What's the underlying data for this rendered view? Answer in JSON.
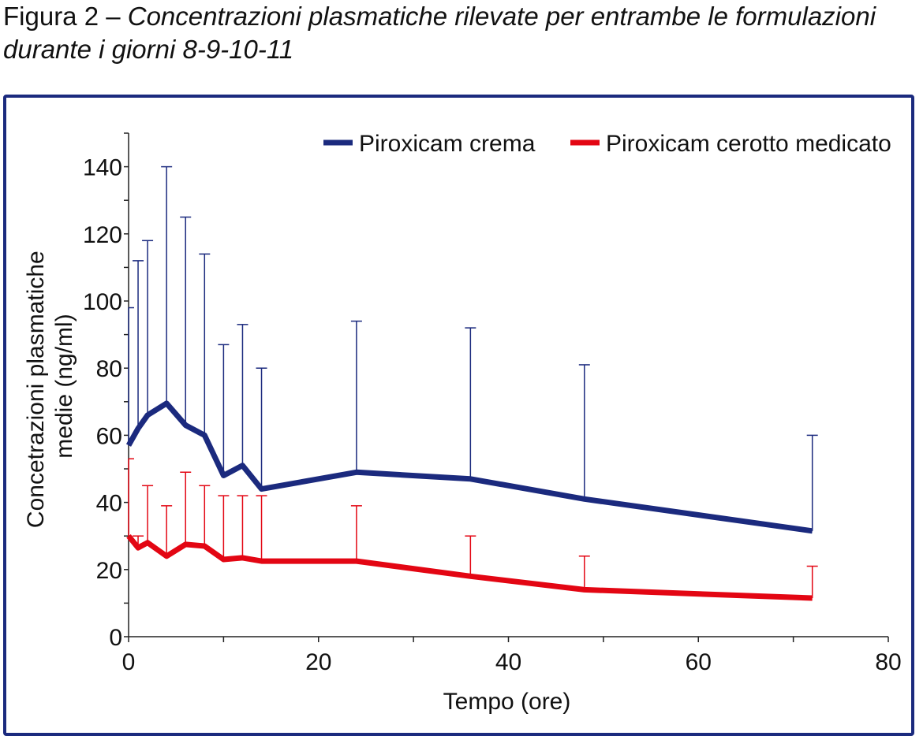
{
  "caption": {
    "label": "Figura 2 – ",
    "text_line1": "Concentrazioni plasmatiche rilevate per entrambe le formulazioni",
    "text_line2": "durante i giorni 8-9-10-11"
  },
  "chart_data": {
    "type": "line",
    "title": "",
    "xlabel": "Tempo (ore)",
    "ylabel_line1": "Concetrazioni plasmatiche",
    "ylabel_line2": "medie (ng/ml)",
    "xlim": [
      0,
      80
    ],
    "ylim": [
      0,
      150
    ],
    "x_ticks": [
      0,
      20,
      40,
      60,
      80
    ],
    "y_ticks": [
      0,
      20,
      40,
      60,
      80,
      100,
      120,
      140
    ],
    "legend_position": "top-right",
    "grid": false,
    "series": [
      {
        "name": "Piroxicam crema",
        "color": "#1b2a7e",
        "x": [
          0,
          1,
          2,
          4,
          6,
          8,
          10,
          12,
          14,
          24,
          36,
          48,
          72
        ],
        "y": [
          57,
          62,
          66,
          69.5,
          63,
          60,
          48,
          51,
          44,
          49,
          47,
          41,
          31.5
        ],
        "error_upper": [
          98,
          112,
          118,
          140,
          125,
          114,
          87,
          93,
          80,
          94,
          92,
          81,
          60
        ]
      },
      {
        "name": "Piroxicam cerotto medicato",
        "color": "#e30613",
        "x": [
          0,
          1,
          2,
          4,
          6,
          8,
          10,
          12,
          14,
          24,
          36,
          48,
          72
        ],
        "y": [
          30,
          26.5,
          28,
          24,
          27.5,
          27,
          23,
          23.5,
          22.5,
          22.5,
          18,
          14,
          11.5
        ],
        "error_upper": [
          53,
          30,
          45,
          39,
          49,
          45,
          42,
          42,
          42,
          39,
          30,
          24,
          21
        ]
      }
    ]
  }
}
